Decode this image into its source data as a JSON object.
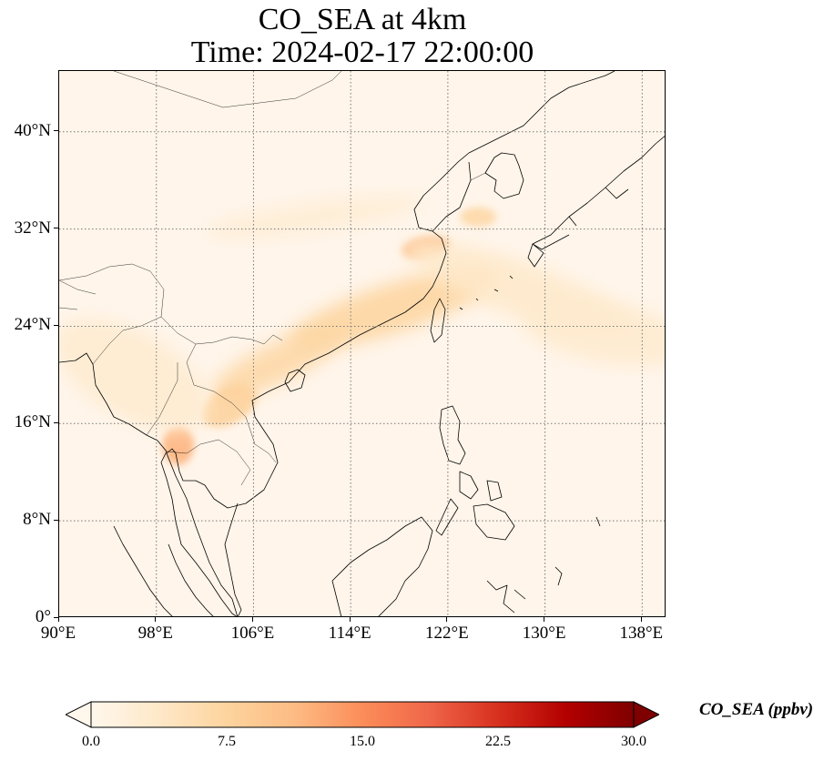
{
  "title": {
    "line1": "CO_SEA at 4km",
    "line2": "Time: 2024-02-17 22:00:00"
  },
  "map": {
    "lon_range": [
      90,
      140
    ],
    "lat_range": [
      0,
      45
    ],
    "lat_ticks": [
      {
        "value": 0,
        "label": "0°"
      },
      {
        "value": 8,
        "label": "8°N"
      },
      {
        "value": 16,
        "label": "16°N"
      },
      {
        "value": 24,
        "label": "24°N"
      },
      {
        "value": 32,
        "label": "32°N"
      },
      {
        "value": 40,
        "label": "40°N"
      }
    ],
    "lon_ticks": [
      {
        "value": 90,
        "label": "90°E"
      },
      {
        "value": 98,
        "label": "98°E"
      },
      {
        "value": 106,
        "label": "106°E"
      },
      {
        "value": 114,
        "label": "114°E"
      },
      {
        "value": 122,
        "label": "122°E"
      },
      {
        "value": 130,
        "label": "130°E"
      },
      {
        "value": 138,
        "label": "138°E"
      }
    ],
    "gridlines": true,
    "colormap": "OrRd",
    "background_color": "#fff5ea",
    "plumes": [
      {
        "lon": 117.5,
        "lat": 25.5,
        "rx": 9,
        "ry": 2.0,
        "angle": -18,
        "value": 7.5
      },
      {
        "lon": 108.0,
        "lat": 21.0,
        "rx": 6,
        "ry": 1.6,
        "angle": -25,
        "value": 7.0
      },
      {
        "lon": 104.0,
        "lat": 17.5,
        "rx": 2.5,
        "ry": 1.5,
        "angle": -30,
        "value": 8.0
      },
      {
        "lon": 99.8,
        "lat": 14.2,
        "rx": 1.3,
        "ry": 1.6,
        "angle": 0,
        "value": 12.0
      },
      {
        "lon": 120.2,
        "lat": 30.5,
        "rx": 2.0,
        "ry": 0.9,
        "angle": -10,
        "value": 11.0
      },
      {
        "lon": 124.5,
        "lat": 33.0,
        "rx": 1.5,
        "ry": 0.8,
        "angle": 0,
        "value": 7.0
      },
      {
        "lon": 128.0,
        "lat": 27.0,
        "rx": 10,
        "ry": 2.2,
        "angle": 20,
        "value": 3.5
      },
      {
        "lon": 96.0,
        "lat": 20.0,
        "rx": 7,
        "ry": 3.5,
        "angle": 30,
        "value": 3.0
      },
      {
        "lon": 111.0,
        "lat": 33.0,
        "rx": 9,
        "ry": 1.2,
        "angle": -8,
        "value": 2.5
      },
      {
        "lon": 135.0,
        "lat": 23.5,
        "rx": 7,
        "ry": 2.5,
        "angle": 10,
        "value": 3.0
      }
    ]
  },
  "colorbar": {
    "min": 0.0,
    "max": 30.0,
    "ticks": [
      "0.0",
      "7.5",
      "15.0",
      "22.5",
      "30.0"
    ],
    "label": "CO_SEA (ppbv)",
    "extend": "both",
    "colors": [
      "#fff7ec",
      "#fee8c8",
      "#fdd49e",
      "#fdbb84",
      "#fc8d59",
      "#ef6548",
      "#d7301f",
      "#b30000",
      "#7f0000"
    ]
  }
}
